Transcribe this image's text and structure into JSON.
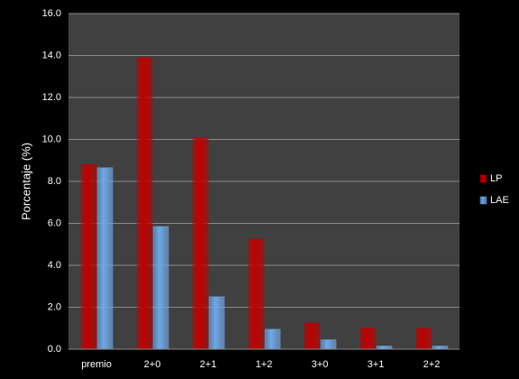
{
  "chart_data": {
    "type": "bar",
    "y_label": "Porcentaje (%)",
    "categories": [
      "premio",
      "2+0",
      "2+1",
      "1+2",
      "3+0",
      "3+1",
      "2+2"
    ],
    "series": [
      {
        "name": "LP",
        "color": "#c00000",
        "values": [
          8.8,
          13.9,
          10.05,
          5.25,
          1.25,
          1.0,
          1.0
        ]
      },
      {
        "name": "LAE",
        "color": "#6fa8e8",
        "values": [
          8.65,
          5.85,
          2.5,
          0.95,
          0.45,
          0.15,
          0.15
        ]
      }
    ],
    "ylim": [
      0,
      16
    ],
    "yticks": [
      {
        "value": 0,
        "label": "0.0"
      },
      {
        "value": 2,
        "label": "2.0"
      },
      {
        "value": 4,
        "label": "4.0"
      },
      {
        "value": 6,
        "label": "6.0"
      },
      {
        "value": 8,
        "label": "8.0"
      },
      {
        "value": 10,
        "label": "10.0"
      },
      {
        "value": 12,
        "label": "12.0"
      },
      {
        "value": 14,
        "label": "14.0"
      },
      {
        "value": 16,
        "label": "16.0"
      }
    ],
    "grid": true,
    "legend": "right"
  }
}
